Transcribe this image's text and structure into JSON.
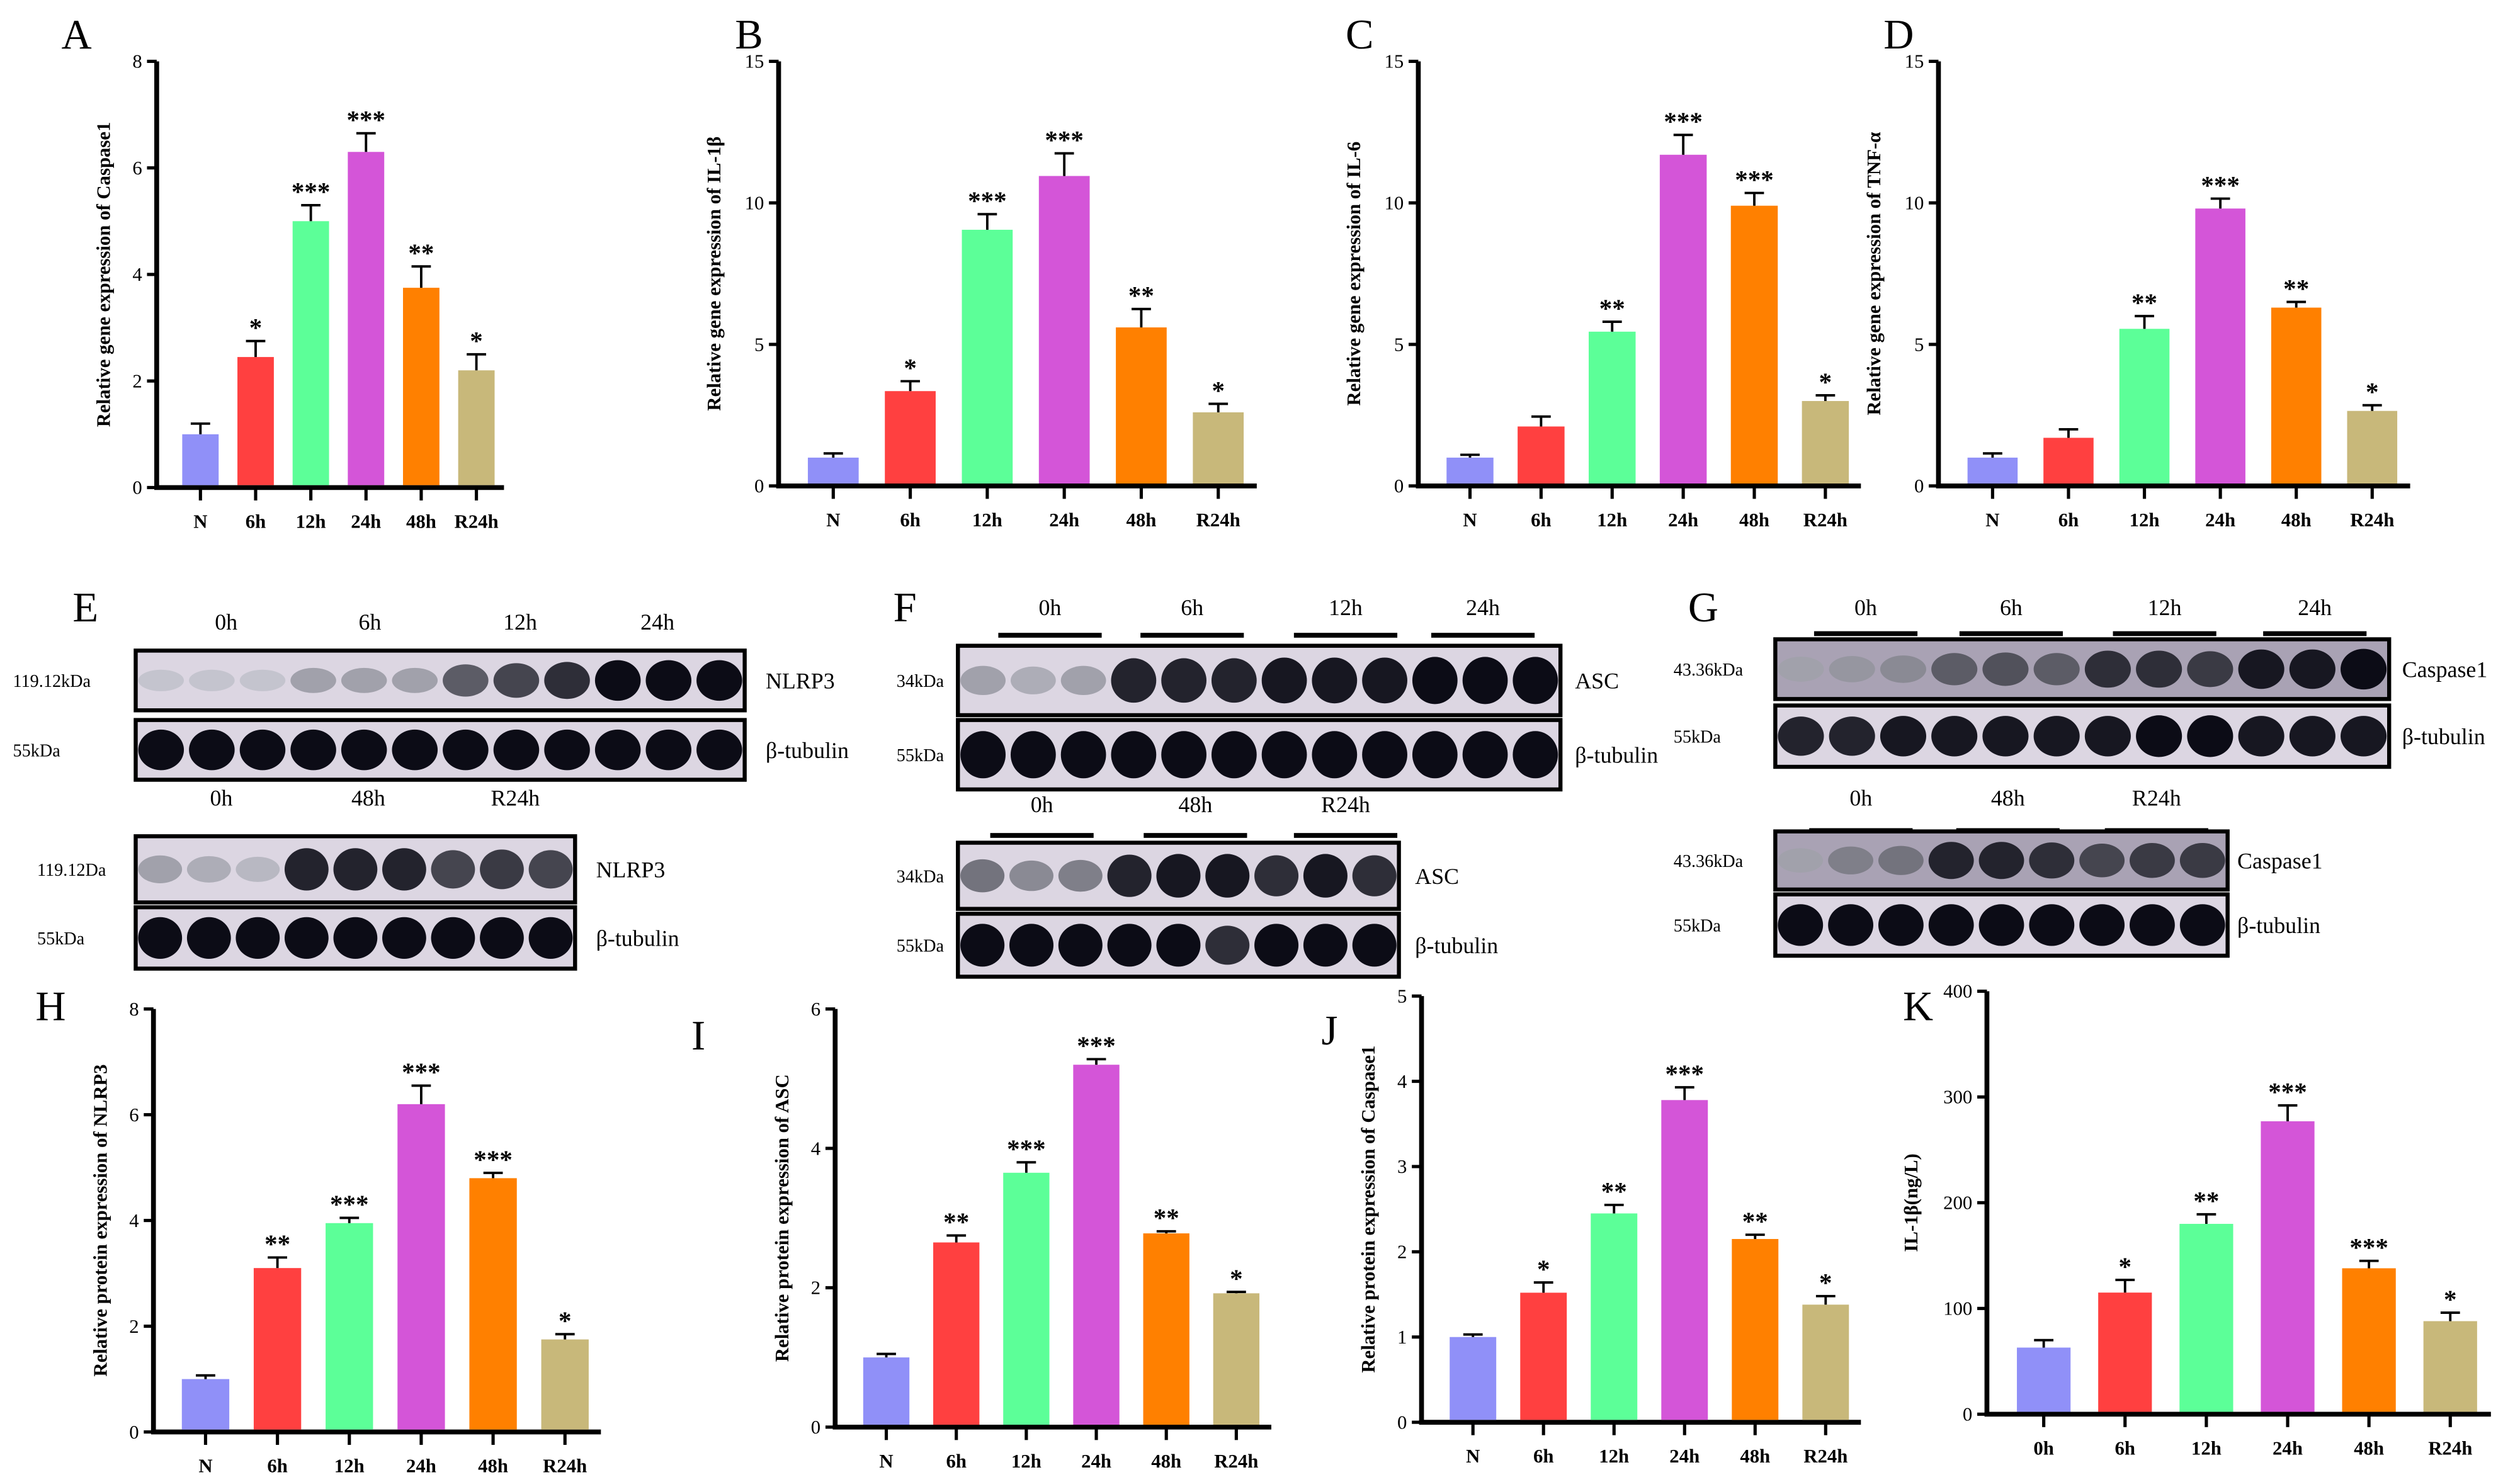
{
  "colors": [
    "#9090f8",
    "#ff4040",
    "#5cff98",
    "#d455d8",
    "#ff8000",
    "#c8b87a"
  ],
  "chart_data": [
    {
      "panel": "A",
      "type": "bar",
      "ylabel": "Relative gene expression of Caspase1",
      "ylim": [
        0,
        8
      ],
      "yticks": [
        0,
        2,
        4,
        6,
        8
      ],
      "categories": [
        "N",
        "6h",
        "12h",
        "24h",
        "48h",
        "R24h"
      ],
      "values": [
        1.0,
        2.45,
        5.0,
        6.3,
        3.75,
        2.2
      ],
      "errors": [
        0.2,
        0.3,
        0.3,
        0.35,
        0.4,
        0.3
      ],
      "significance": [
        "",
        "*",
        "***",
        "***",
        "**",
        "*"
      ]
    },
    {
      "panel": "B",
      "type": "bar",
      "ylabel": "Relative gene expression of IL-1β",
      "ylim": [
        0,
        15
      ],
      "yticks": [
        0,
        5,
        10,
        15
      ],
      "categories": [
        "N",
        "6h",
        "12h",
        "24h",
        "48h",
        "R24h"
      ],
      "values": [
        1.0,
        3.35,
        9.05,
        10.95,
        5.6,
        2.6
      ],
      "errors": [
        0.15,
        0.35,
        0.55,
        0.8,
        0.65,
        0.3
      ],
      "significance": [
        "",
        "*",
        "***",
        "***",
        "**",
        "*"
      ]
    },
    {
      "panel": "C",
      "type": "bar",
      "ylabel": "Relative gene expression of IL-6",
      "ylim": [
        0,
        15
      ],
      "yticks": [
        0,
        5,
        10,
        15
      ],
      "categories": [
        "N",
        "6h",
        "12h",
        "24h",
        "48h",
        "R24h"
      ],
      "values": [
        1.0,
        2.1,
        5.45,
        11.7,
        9.9,
        3.0
      ],
      "errors": [
        0.1,
        0.35,
        0.35,
        0.7,
        0.45,
        0.2
      ],
      "significance": [
        "",
        "",
        "**",
        "***",
        "***",
        "*"
      ]
    },
    {
      "panel": "D",
      "type": "bar",
      "ylabel": "Relative gene expression of TNF-α",
      "ylim": [
        0,
        15
      ],
      "yticks": [
        0,
        5,
        10,
        15
      ],
      "categories": [
        "N",
        "6h",
        "12h",
        "24h",
        "48h",
        "R24h"
      ],
      "values": [
        1.0,
        1.7,
        5.55,
        9.8,
        6.3,
        2.65
      ],
      "errors": [
        0.15,
        0.3,
        0.45,
        0.35,
        0.2,
        0.2
      ],
      "significance": [
        "",
        "",
        "**",
        "***",
        "**",
        "*"
      ]
    },
    {
      "panel": "H",
      "type": "bar",
      "ylabel": "Relative protein expression of NLRP3",
      "ylim": [
        0,
        8
      ],
      "yticks": [
        0,
        2,
        4,
        6,
        8
      ],
      "categories": [
        "N",
        "6h",
        "12h",
        "24h",
        "48h",
        "R24h"
      ],
      "values": [
        1.0,
        3.1,
        3.95,
        6.2,
        4.8,
        1.75
      ],
      "errors": [
        0.07,
        0.2,
        0.1,
        0.35,
        0.1,
        0.1
      ],
      "significance": [
        "",
        "**",
        "***",
        "***",
        "***",
        "*"
      ]
    },
    {
      "panel": "I",
      "type": "bar",
      "ylabel": "Relative protein expression of ASC",
      "ylim": [
        0,
        6
      ],
      "yticks": [
        0,
        2,
        4,
        6
      ],
      "categories": [
        "N",
        "6h",
        "12h",
        "24h",
        "48h",
        "R24h"
      ],
      "values": [
        1.0,
        2.65,
        3.65,
        5.2,
        2.78,
        1.92
      ],
      "errors": [
        0.05,
        0.1,
        0.15,
        0.08,
        0.03,
        0.02
      ],
      "significance": [
        "",
        "**",
        "***",
        "***",
        "**",
        "*"
      ]
    },
    {
      "panel": "J",
      "type": "bar",
      "ylabel": "Relative protein expression of Caspase1",
      "ylim": [
        0,
        5
      ],
      "yticks": [
        0,
        1,
        2,
        3,
        4,
        5
      ],
      "categories": [
        "N",
        "6h",
        "12h",
        "24h",
        "48h",
        "R24h"
      ],
      "values": [
        1.0,
        1.52,
        2.45,
        3.78,
        2.15,
        1.38
      ],
      "errors": [
        0.03,
        0.12,
        0.1,
        0.15,
        0.05,
        0.1
      ],
      "significance": [
        "",
        "*",
        "**",
        "***",
        "**",
        "*"
      ]
    },
    {
      "panel": "K",
      "type": "bar",
      "ylabel": "IL-1β(ng/L)",
      "ylim": [
        0,
        400
      ],
      "yticks": [
        0,
        100,
        200,
        300,
        400
      ],
      "categories": [
        "0h",
        "6h",
        "12h",
        "24h",
        "48h",
        "R24h"
      ],
      "values": [
        63,
        115,
        180,
        277,
        138,
        88
      ],
      "errors": [
        7,
        12,
        9,
        15,
        7,
        8
      ],
      "significance": [
        "",
        "*",
        "**",
        "***",
        "***",
        "*"
      ]
    }
  ],
  "blots": [
    {
      "panel": "E",
      "groups": [
        {
          "lanes": [
            "0h",
            "6h",
            "12h",
            "24h"
          ],
          "rows": [
            {
              "protein": "NLRP3",
              "kda": "119.12kDa",
              "intensity": [
                0.15,
                0.15,
                0.15,
                0.3,
                0.3,
                0.3,
                0.6,
                0.7,
                0.8,
                0.95,
                0.95,
                0.95
              ]
            },
            {
              "protein": "β-tubulin",
              "kda": "55kDa",
              "intensity": [
                0.95,
                0.95,
                0.95,
                0.95,
                0.95,
                0.95,
                0.95,
                0.95,
                0.95,
                0.95,
                0.95,
                0.95
              ]
            }
          ]
        },
        {
          "lanes": [
            "0h",
            "48h",
            "R24h"
          ],
          "rows": [
            {
              "protein": "NLRP3",
              "kda": "119.12Da",
              "intensity": [
                0.3,
                0.25,
                0.2,
                0.85,
                0.85,
                0.85,
                0.7,
                0.75,
                0.7
              ]
            },
            {
              "protein": "β-tubulin",
              "kda": "55kDa",
              "intensity": [
                0.95,
                0.95,
                0.95,
                0.95,
                0.95,
                0.95,
                0.95,
                0.95,
                0.95
              ]
            }
          ]
        }
      ]
    },
    {
      "panel": "F",
      "groups": [
        {
          "lanes": [
            "0h",
            "6h",
            "12h",
            "24h"
          ],
          "rows": [
            {
              "protein": "ASC",
              "kda": "34kDa",
              "intensity": [
                0.3,
                0.25,
                0.3,
                0.85,
                0.85,
                0.85,
                0.9,
                0.9,
                0.9,
                0.95,
                0.95,
                0.95
              ]
            },
            {
              "protein": "β-tubulin",
              "kda": "55kDa",
              "intensity": [
                0.95,
                0.95,
                0.95,
                0.95,
                0.95,
                0.95,
                0.95,
                0.95,
                0.95,
                0.95,
                0.95,
                0.95
              ]
            }
          ]
        },
        {
          "lanes": [
            "0h",
            "48h",
            "R24h"
          ],
          "rows": [
            {
              "protein": "ASC",
              "kda": "34kDa",
              "intensity": [
                0.5,
                0.4,
                0.45,
                0.85,
                0.9,
                0.9,
                0.8,
                0.9,
                0.8
              ]
            },
            {
              "protein": "β-tubulin",
              "kda": "55kDa",
              "intensity": [
                0.95,
                0.95,
                0.95,
                0.95,
                0.95,
                0.8,
                0.95,
                0.95,
                0.95
              ]
            }
          ]
        }
      ]
    },
    {
      "panel": "G",
      "groups": [
        {
          "lanes": [
            "0h",
            "6h",
            "12h",
            "24h"
          ],
          "rows": [
            {
              "protein": "Caspase1",
              "kda": "43.36kDa",
              "intensity": [
                0.3,
                0.35,
                0.4,
                0.6,
                0.65,
                0.6,
                0.8,
                0.8,
                0.75,
                0.9,
                0.9,
                0.95
              ]
            },
            {
              "protein": "β-tubulin",
              "kda": "55kDa",
              "intensity": [
                0.85,
                0.85,
                0.9,
                0.9,
                0.9,
                0.9,
                0.9,
                0.95,
                0.95,
                0.9,
                0.9,
                0.9
              ]
            }
          ]
        },
        {
          "lanes": [
            "0h",
            "48h",
            "R24h"
          ],
          "rows": [
            {
              "protein": "Caspase1",
              "kda": "43.36kDa",
              "intensity": [
                0.3,
                0.45,
                0.5,
                0.85,
                0.85,
                0.8,
                0.7,
                0.75,
                0.75
              ]
            },
            {
              "protein": "β-tubulin",
              "kda": "55kDa",
              "intensity": [
                0.95,
                0.95,
                0.95,
                0.95,
                0.95,
                0.95,
                0.95,
                0.95,
                0.95
              ]
            }
          ]
        }
      ]
    }
  ]
}
